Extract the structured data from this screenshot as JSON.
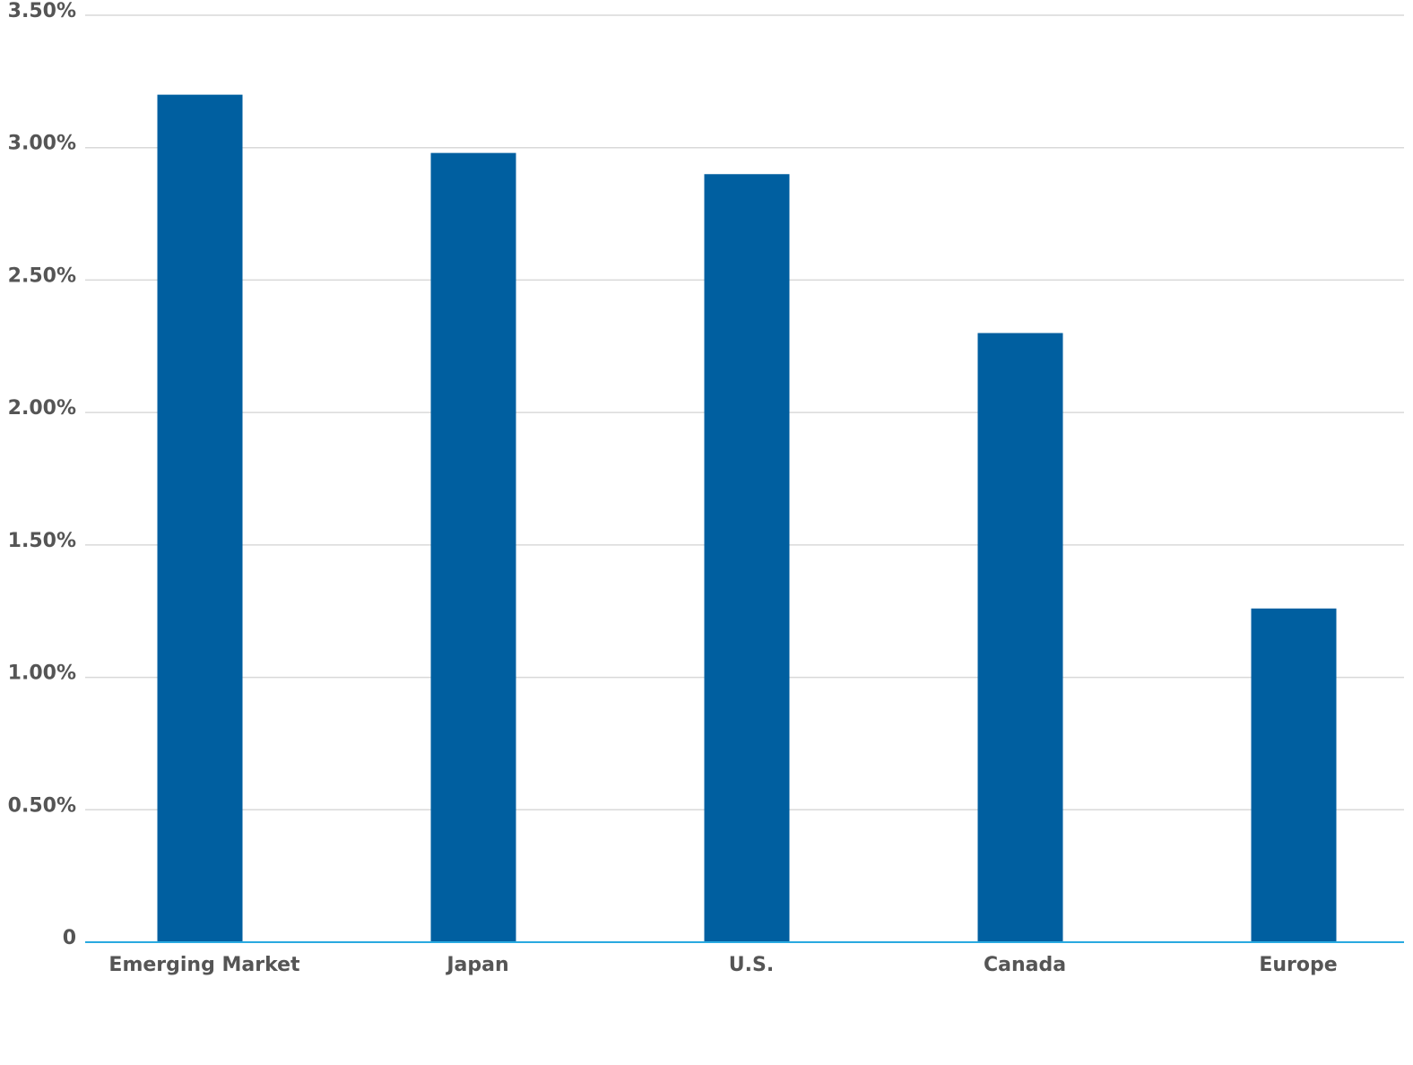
{
  "chart_data": {
    "type": "bar",
    "categories": [
      "Emerging Market",
      "Japan",
      "U.S.",
      "Canada",
      "Europe"
    ],
    "values": [
      3.2,
      2.98,
      2.9,
      2.3,
      1.26
    ],
    "color": "#005fa0",
    "ylim": [
      0,
      3.5
    ],
    "yticks": [
      0,
      {
        "value": 0.5,
        "label": "0.50%"
      },
      {
        "value": 1,
        "label": "1.00%"
      },
      {
        "value": 1.5,
        "label": "1.50%"
      },
      {
        "value": 2,
        "label": "2.00%"
      },
      {
        "value": 2.5,
        "label": "2.50%"
      },
      {
        "value": 3,
        "label": "3.00%"
      },
      {
        "value": 3.5,
        "label": "3.50%"
      }
    ],
    "grid": true
  }
}
